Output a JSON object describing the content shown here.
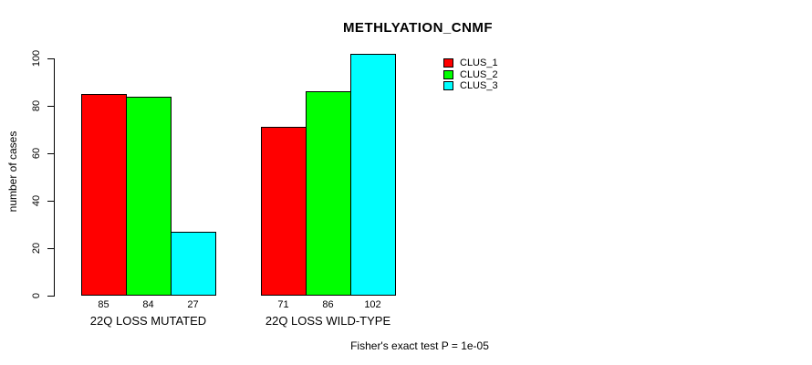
{
  "chart_data": {
    "type": "bar",
    "title": "METHLYATION_CNMF",
    "ylabel": "number of cases",
    "ylim": [
      0,
      100
    ],
    "yticks": [
      0,
      20,
      40,
      60,
      80,
      100
    ],
    "grid": false,
    "categories": [
      "22Q LOSS MUTATED",
      "22Q LOSS WILD-TYPE"
    ],
    "series": [
      {
        "name": "CLUS_1",
        "color": "#ff0000",
        "values": [
          85,
          71
        ]
      },
      {
        "name": "CLUS_2",
        "color": "#00ff00",
        "values": [
          84,
          86
        ]
      },
      {
        "name": "CLUS_3",
        "color": "#00ffff",
        "values": [
          27,
          102
        ]
      }
    ],
    "bar_value_labels": [
      [
        85,
        84,
        27
      ],
      [
        71,
        86,
        102
      ]
    ],
    "legend": {
      "position": "top-right",
      "entries": [
        "CLUS_1",
        "CLUS_2",
        "CLUS_3"
      ]
    },
    "footnote": "Fisher's exact test P = 1e-05",
    "colors": {
      "bar_border": "#000000",
      "axis": "#000000",
      "background": "#ffffff"
    }
  }
}
